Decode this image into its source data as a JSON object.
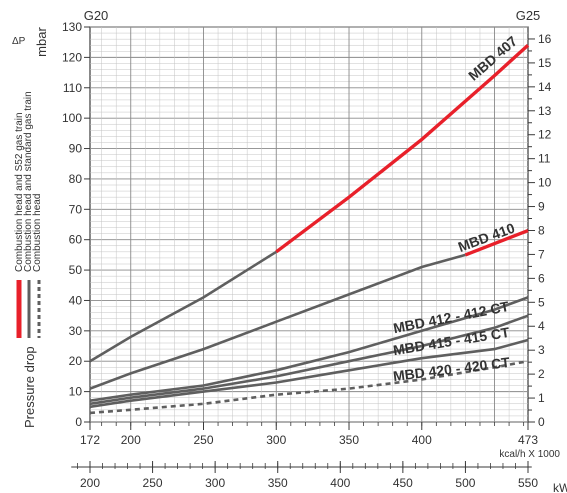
{
  "chart_data": {
    "type": "line",
    "title": "",
    "gas_left": "G20",
    "gas_right": "G25",
    "y_left": {
      "unit": "mbar",
      "symbol": "ΔP",
      "range": [
        0,
        130
      ],
      "ticks": [
        0,
        10,
        20,
        30,
        40,
        50,
        60,
        70,
        80,
        90,
        100,
        110,
        120,
        130
      ]
    },
    "y_right": {
      "range": [
        0,
        16.5
      ],
      "ticks": [
        0,
        1,
        2,
        3,
        4,
        5,
        6,
        7,
        8,
        9,
        10,
        11,
        12,
        13,
        14,
        15,
        16
      ],
      "ticks_labeled": [
        0,
        1,
        2,
        3,
        4,
        5,
        6,
        7,
        8,
        9,
        10,
        11,
        12,
        13,
        14,
        15,
        16
      ]
    },
    "x_kcal": {
      "label": "kcal/h X 1000",
      "range": [
        172,
        473
      ],
      "ticks": [
        172,
        200,
        250,
        300,
        350,
        400,
        473
      ]
    },
    "x_kw": {
      "label": "kW",
      "range": [
        200,
        550
      ],
      "ticks": [
        200,
        250,
        300,
        350,
        400,
        450,
        500,
        550
      ]
    },
    "ylabel": "Pressure drop",
    "legend": {
      "placement": "left",
      "items": [
        {
          "label": "Combustion head and S52 gas train",
          "style": "red-solid"
        },
        {
          "label": "Combustion head and standard gas train",
          "style": "gray-solid"
        },
        {
          "label": "Combustion head",
          "style": "gray-dashed"
        }
      ]
    },
    "series": [
      {
        "name": "MBD 407",
        "color": "#e8202a",
        "x": [
          172,
          200,
          250,
          300,
          350,
          400,
          450,
          473
        ],
        "y": [
          20,
          28,
          41,
          56,
          74,
          93,
          114,
          124
        ]
      },
      {
        "name": "MBD 410",
        "color": "#e8202a",
        "x": [
          172,
          200,
          250,
          300,
          350,
          400,
          430,
          473
        ],
        "y": [
          11,
          16,
          24,
          33,
          42,
          51,
          55,
          63
        ]
      },
      {
        "name": "MBD 412 - 412 CT",
        "x": [
          172,
          200,
          250,
          300,
          350,
          400,
          450,
          473
        ],
        "y": [
          7,
          9,
          12,
          17,
          23,
          30,
          37,
          41
        ]
      },
      {
        "name": "MBD 415 - 415 CT",
        "x": [
          172,
          200,
          250,
          300,
          350,
          400,
          450,
          473
        ],
        "y": [
          6,
          8,
          11,
          15,
          20,
          25,
          31,
          35
        ]
      },
      {
        "name": "MBD 420 - 420 CT",
        "x": [
          172,
          200,
          250,
          300,
          350,
          400,
          450,
          473
        ],
        "y": [
          5,
          7,
          10,
          13,
          17,
          21,
          24,
          27
        ]
      },
      {
        "name": "",
        "x": [
          172,
          200,
          250,
          300,
          350,
          400,
          450,
          473
        ],
        "y": [
          3,
          4,
          6,
          9,
          11,
          14,
          18,
          20
        ]
      }
    ],
    "grid": true
  }
}
